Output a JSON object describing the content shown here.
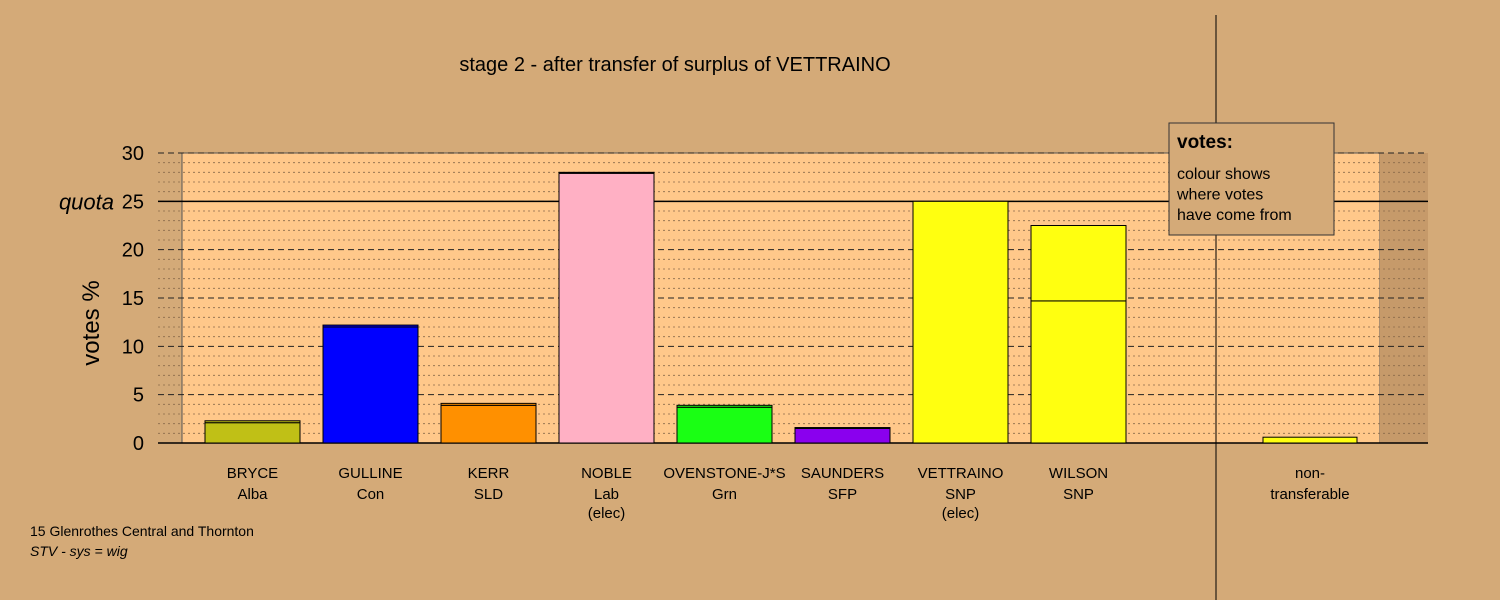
{
  "chart_data": {
    "type": "bar",
    "title": "stage 2 - after transfer of surplus of VETTRAINO",
    "ylabel": "votes %",
    "ylim": [
      0,
      30
    ],
    "yticks": [
      0,
      5,
      10,
      15,
      20,
      25,
      30
    ],
    "quota": {
      "label": "quota",
      "value": 25
    },
    "grid": true,
    "legend": {
      "title": "votes:",
      "lines": [
        "colour shows",
        "where votes",
        "have come from"
      ],
      "placement": "top-right"
    },
    "bars": [
      {
        "name": "BRYCE",
        "party": "Alba",
        "note": "",
        "segments": [
          {
            "value": 2.1,
            "color": "#c0c016"
          },
          {
            "value": 0.2,
            "color": "#c0c016"
          }
        ]
      },
      {
        "name": "GULLINE",
        "party": "Con",
        "note": "",
        "segments": [
          {
            "value": 12.0,
            "color": "#0000ff"
          },
          {
            "value": 0.2,
            "color": "#0000ff"
          }
        ]
      },
      {
        "name": "KERR",
        "party": "SLD",
        "note": "",
        "segments": [
          {
            "value": 3.9,
            "color": "#ff9000"
          },
          {
            "value": 0.2,
            "color": "#ff9000"
          }
        ]
      },
      {
        "name": "NOBLE",
        "party": "Lab",
        "note": "(elec)",
        "segments": [
          {
            "value": 27.9,
            "color": "#ffb0c4"
          },
          {
            "value": 0.1,
            "color": "#ffb0c4"
          }
        ]
      },
      {
        "name": "OVENSTONE-J*S",
        "party": "Grn",
        "note": "",
        "segments": [
          {
            "value": 3.7,
            "color": "#1aff14"
          },
          {
            "value": 0.2,
            "color": "#1aff14"
          }
        ]
      },
      {
        "name": "SAUNDERS",
        "party": "SFP",
        "note": "",
        "segments": [
          {
            "value": 1.5,
            "color": "#8a00ee"
          },
          {
            "value": 0.1,
            "color": "#8a00ee"
          }
        ]
      },
      {
        "name": "VETTRAINO",
        "party": "SNP",
        "note": "(elec)",
        "segments": [
          {
            "value": 25.0,
            "color": "#ffff10"
          }
        ]
      },
      {
        "name": "WILSON",
        "party": "SNP",
        "note": "",
        "segments": [
          {
            "value": 14.7,
            "color": "#ffff10"
          },
          {
            "value": 7.8,
            "color": "#ffff10"
          }
        ]
      }
    ],
    "nontransferable": {
      "line1": "non-",
      "line2": "transferable",
      "value": 0.6,
      "color": "#ffff10"
    }
  },
  "footer": {
    "line1": "15 Glenrothes Central and Thornton",
    "line2": "STV - sys = wig"
  }
}
